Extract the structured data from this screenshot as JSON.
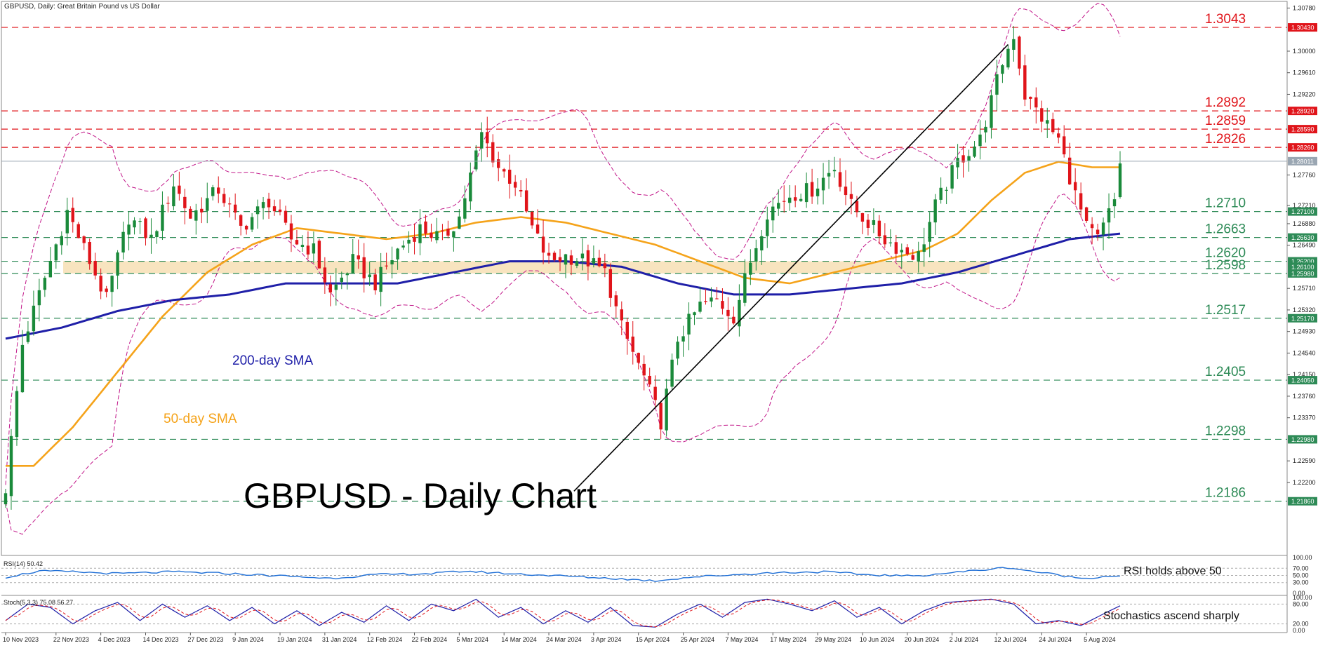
{
  "header": {
    "symbol_label": "GBPUSD, Daily:  Great Britain Pound vs US Dollar"
  },
  "chart_title": "GBPUSD - Daily Chart",
  "colors": {
    "bull": "#1a8a3a",
    "bear": "#e0141a",
    "sma50": "#f5a31a",
    "sma200": "#1f1fa8",
    "bollinger": "#c2188a",
    "resistance": "#e0141a",
    "support": "#2e8b57",
    "zone": "#f7dfb4",
    "rsi": "#1f6fd6",
    "stoch_k": "#1f1fa8",
    "stoch_d": "#e0141a",
    "last_price": "#9aa6b2"
  },
  "annotations": {
    "sma200": "200-day SMA",
    "sma50": "50-day SMA",
    "rsi": "RSI holds above 50",
    "stoch": "Stochastics ascend sharply"
  },
  "chart_data": {
    "type": "candlestick",
    "title": "GBPUSD - Daily Chart",
    "ylim": [
      1.2088,
      1.309
    ],
    "price_axis_ticks": [
      "1.30780",
      "1.30000",
      "1.29610",
      "1.29220",
      "1.27760",
      "1.27210",
      "1.26880",
      "1.26490",
      "1.25710",
      "1.25320",
      "1.24930",
      "1.24540",
      "1.24150",
      "1.23760",
      "1.23370",
      "1.22590",
      "1.22200"
    ],
    "x_ticks": [
      {
        "i": 0,
        "label": "10 Nov 2023"
      },
      {
        "i": 9,
        "label": "22 Nov 2023"
      },
      {
        "i": 17,
        "label": "4 Dec 2023"
      },
      {
        "i": 25,
        "label": "14 Dec 2023"
      },
      {
        "i": 33,
        "label": "27 Dec 2023"
      },
      {
        "i": 41,
        "label": "9 Jan 2024"
      },
      {
        "i": 49,
        "label": "19 Jan 2024"
      },
      {
        "i": 57,
        "label": "31 Jan 2024"
      },
      {
        "i": 65,
        "label": "12 Feb 2024"
      },
      {
        "i": 73,
        "label": "22 Feb 2024"
      },
      {
        "i": 81,
        "label": "5 Mar 2024"
      },
      {
        "i": 89,
        "label": "14 Mar 2024"
      },
      {
        "i": 97,
        "label": "24 Mar 2024"
      },
      {
        "i": 105,
        "label": "3 Apr 2024"
      },
      {
        "i": 113,
        "label": "15 Apr 2024"
      },
      {
        "i": 121,
        "label": "25 Apr 2024"
      },
      {
        "i": 129,
        "label": "7 May 2024"
      },
      {
        "i": 137,
        "label": "17 May 2024"
      },
      {
        "i": 145,
        "label": "29 May 2024"
      },
      {
        "i": 153,
        "label": "10 Jun 2024"
      },
      {
        "i": 161,
        "label": "20 Jun 2024"
      },
      {
        "i": 169,
        "label": "2 Jul 2024"
      },
      {
        "i": 177,
        "label": "12 Jul 2024"
      },
      {
        "i": 185,
        "label": "24 Jul 2024"
      },
      {
        "i": 193,
        "label": "5 Aug 2024"
      }
    ],
    "levels": [
      {
        "value": 1.3043,
        "label": "1.3043",
        "box": "1.30430",
        "kind": "resistance"
      },
      {
        "value": 1.2892,
        "label": "1.2892",
        "box": "1.28920",
        "kind": "resistance"
      },
      {
        "value": 1.2859,
        "label": "1.2859",
        "box": "1.28590",
        "kind": "resistance"
      },
      {
        "value": 1.2826,
        "label": "1.2826",
        "box": "1.28260",
        "kind": "resistance"
      },
      {
        "value": 1.271,
        "label": "1.2710",
        "box": "1.27100",
        "kind": "support"
      },
      {
        "value": 1.2663,
        "label": "1.2663",
        "box": "1.26630",
        "kind": "support"
      },
      {
        "value": 1.262,
        "label": "1.2620",
        "box": "1.26200",
        "kind": "support"
      },
      {
        "value": 1.2598,
        "label": "1.2598",
        "box": "1.25980",
        "kind": "support"
      },
      {
        "value": 1.2517,
        "label": "1.2517",
        "box": "1.25170",
        "kind": "support"
      },
      {
        "value": 1.2405,
        "label": "1.2405",
        "box": "1.24050",
        "kind": "support"
      },
      {
        "value": 1.2298,
        "label": "1.2298",
        "box": "1.22980",
        "kind": "support"
      },
      {
        "value": 1.2186,
        "label": "1.2186",
        "box": "1.21860",
        "kind": "support"
      }
    ],
    "box_only_labels": [
      {
        "value": 1.261,
        "box": "1.26100"
      }
    ],
    "last_price": {
      "value": 1.2801,
      "box": "1.28011"
    },
    "zone": [
      1.2598,
      1.262
    ],
    "trendline": {
      "from": {
        "i": 103,
        "price": 1.2255
      },
      "to": {
        "i": 179,
        "price": 1.3012
      }
    },
    "close_anchors": [
      [
        0,
        1.221
      ],
      [
        3,
        1.247
      ],
      [
        8,
        1.262
      ],
      [
        11,
        1.271
      ],
      [
        15,
        1.262
      ],
      [
        18,
        1.255
      ],
      [
        22,
        1.27
      ],
      [
        26,
        1.266
      ],
      [
        30,
        1.276
      ],
      [
        33,
        1.27
      ],
      [
        38,
        1.275
      ],
      [
        42,
        1.268
      ],
      [
        47,
        1.273
      ],
      [
        51,
        1.266
      ],
      [
        55,
        1.264
      ],
      [
        58,
        1.256
      ],
      [
        62,
        1.262
      ],
      [
        66,
        1.258
      ],
      [
        70,
        1.264
      ],
      [
        74,
        1.268
      ],
      [
        78,
        1.266
      ],
      [
        81,
        1.27
      ],
      [
        85,
        1.285
      ],
      [
        88,
        1.279
      ],
      [
        91,
        1.276
      ],
      [
        94,
        1.268
      ],
      [
        97,
        1.262
      ],
      [
        100,
        1.263
      ],
      [
        104,
        1.262
      ],
      [
        107,
        1.26
      ],
      [
        110,
        1.25
      ],
      [
        114,
        1.241
      ],
      [
        117,
        1.233
      ],
      [
        120,
        1.248
      ],
      [
        124,
        1.254
      ],
      [
        127,
        1.255
      ],
      [
        130,
        1.252
      ],
      [
        133,
        1.262
      ],
      [
        136,
        1.271
      ],
      [
        140,
        1.274
      ],
      [
        144,
        1.275
      ],
      [
        148,
        1.279
      ],
      [
        151,
        1.272
      ],
      [
        154,
        1.269
      ],
      [
        157,
        1.266
      ],
      [
        160,
        1.264
      ],
      [
        163,
        1.263
      ],
      [
        166,
        1.272
      ],
      [
        170,
        1.28
      ],
      [
        174,
        1.284
      ],
      [
        178,
        1.298
      ],
      [
        180,
        1.303
      ],
      [
        182,
        1.292
      ],
      [
        185,
        1.288
      ],
      [
        188,
        1.284
      ],
      [
        191,
        1.274
      ],
      [
        193,
        1.268
      ],
      [
        195,
        1.266
      ],
      [
        198,
        1.273
      ],
      [
        199,
        1.28
      ]
    ],
    "sma50_anchors": [
      [
        0,
        1.225
      ],
      [
        5,
        1.225
      ],
      [
        12,
        1.232
      ],
      [
        20,
        1.242
      ],
      [
        28,
        1.252
      ],
      [
        36,
        1.26
      ],
      [
        44,
        1.265
      ],
      [
        52,
        1.268
      ],
      [
        60,
        1.267
      ],
      [
        68,
        1.266
      ],
      [
        76,
        1.267
      ],
      [
        84,
        1.269
      ],
      [
        92,
        1.27
      ],
      [
        100,
        1.269
      ],
      [
        108,
        1.267
      ],
      [
        116,
        1.265
      ],
      [
        124,
        1.262
      ],
      [
        132,
        1.259
      ],
      [
        140,
        1.258
      ],
      [
        148,
        1.26
      ],
      [
        156,
        1.262
      ],
      [
        164,
        1.264
      ],
      [
        170,
        1.267
      ],
      [
        176,
        1.273
      ],
      [
        182,
        1.278
      ],
      [
        188,
        1.28
      ],
      [
        194,
        1.279
      ],
      [
        199,
        1.279
      ]
    ],
    "sma200_anchors": [
      [
        0,
        1.248
      ],
      [
        10,
        1.25
      ],
      [
        20,
        1.253
      ],
      [
        30,
        1.255
      ],
      [
        40,
        1.256
      ],
      [
        50,
        1.258
      ],
      [
        60,
        1.258
      ],
      [
        70,
        1.258
      ],
      [
        80,
        1.26
      ],
      [
        90,
        1.262
      ],
      [
        100,
        1.262
      ],
      [
        110,
        1.261
      ],
      [
        120,
        1.258
      ],
      [
        130,
        1.256
      ],
      [
        140,
        1.256
      ],
      [
        150,
        1.257
      ],
      [
        160,
        1.258
      ],
      [
        170,
        1.26
      ],
      [
        180,
        1.263
      ],
      [
        190,
        1.266
      ],
      [
        199,
        1.267
      ]
    ],
    "rsi": {
      "label": "RSI(14) 50.42",
      "levels": [
        "100.00",
        "70.00",
        "50.00",
        "30.00",
        "0.00"
      ],
      "value_ticks": [
        100,
        70,
        50,
        30,
        0
      ],
      "anchors": [
        [
          0,
          45
        ],
        [
          6,
          62
        ],
        [
          12,
          60
        ],
        [
          20,
          55
        ],
        [
          30,
          60
        ],
        [
          40,
          55
        ],
        [
          50,
          48
        ],
        [
          58,
          42
        ],
        [
          66,
          52
        ],
        [
          76,
          55
        ],
        [
          82,
          62
        ],
        [
          90,
          55
        ],
        [
          100,
          48
        ],
        [
          108,
          42
        ],
        [
          116,
          35
        ],
        [
          122,
          45
        ],
        [
          130,
          52
        ],
        [
          138,
          58
        ],
        [
          146,
          60
        ],
        [
          154,
          52
        ],
        [
          162,
          48
        ],
        [
          172,
          62
        ],
        [
          179,
          72
        ],
        [
          184,
          60
        ],
        [
          192,
          42
        ],
        [
          199,
          50
        ]
      ]
    },
    "stoch": {
      "label": "Stoch(5,3,3) 75.08 56.27",
      "levels": [
        "100.00",
        "80.00",
        "20.00",
        "0.00"
      ],
      "value_ticks": [
        100,
        80,
        20,
        0
      ],
      "k_anchors": [
        [
          0,
          30
        ],
        [
          4,
          80
        ],
        [
          8,
          70
        ],
        [
          12,
          20
        ],
        [
          16,
          60
        ],
        [
          20,
          85
        ],
        [
          24,
          30
        ],
        [
          28,
          80
        ],
        [
          32,
          40
        ],
        [
          36,
          75
        ],
        [
          40,
          30
        ],
        [
          44,
          70
        ],
        [
          48,
          20
        ],
        [
          52,
          60
        ],
        [
          56,
          15
        ],
        [
          60,
          55
        ],
        [
          64,
          25
        ],
        [
          68,
          75
        ],
        [
          72,
          30
        ],
        [
          76,
          80
        ],
        [
          80,
          60
        ],
        [
          84,
          95
        ],
        [
          88,
          40
        ],
        [
          92,
          70
        ],
        [
          96,
          20
        ],
        [
          100,
          60
        ],
        [
          104,
          25
        ],
        [
          108,
          70
        ],
        [
          112,
          15
        ],
        [
          116,
          10
        ],
        [
          120,
          50
        ],
        [
          124,
          80
        ],
        [
          128,
          40
        ],
        [
          132,
          85
        ],
        [
          136,
          95
        ],
        [
          140,
          80
        ],
        [
          144,
          60
        ],
        [
          148,
          90
        ],
        [
          152,
          40
        ],
        [
          156,
          70
        ],
        [
          160,
          20
        ],
        [
          164,
          60
        ],
        [
          168,
          85
        ],
        [
          172,
          90
        ],
        [
          176,
          95
        ],
        [
          180,
          80
        ],
        [
          184,
          20
        ],
        [
          188,
          30
        ],
        [
          192,
          15
        ],
        [
          196,
          50
        ],
        [
          199,
          75
        ]
      ]
    }
  }
}
